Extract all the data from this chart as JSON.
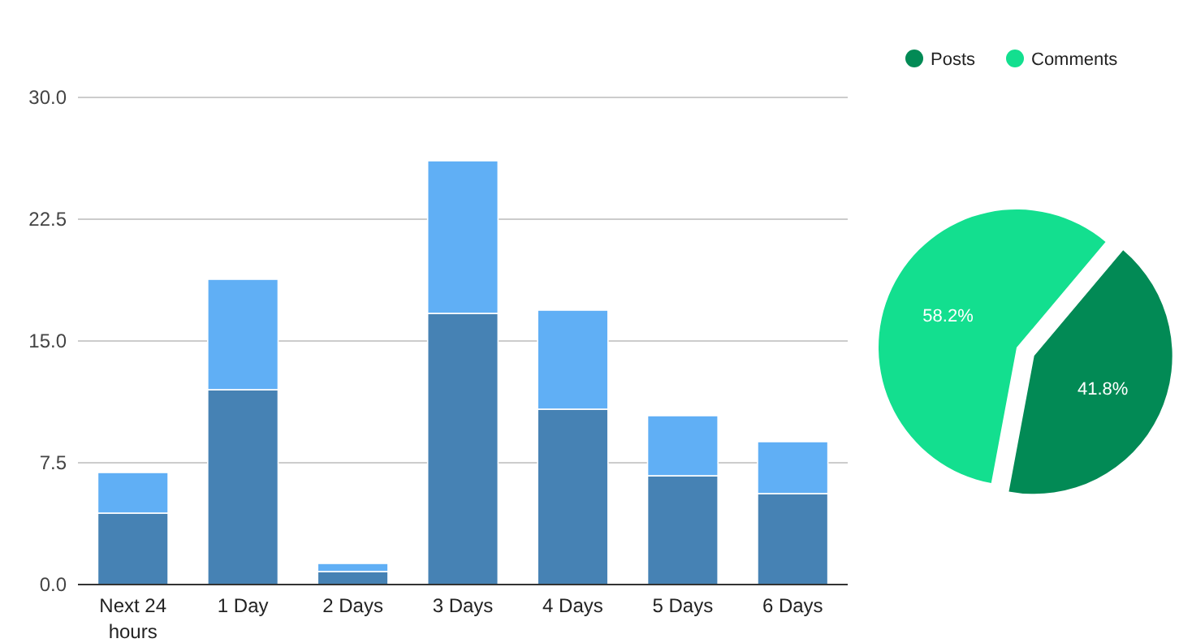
{
  "chart_data": [
    {
      "type": "bar",
      "stacked": true,
      "categories": [
        "Next 24 hours",
        "1 Day",
        "2 Days",
        "3 Days",
        "4 Days",
        "5 Days",
        "6 Days"
      ],
      "series": [
        {
          "color": "#4682b4",
          "values": [
            4.4,
            12.0,
            0.8,
            16.7,
            10.8,
            6.7,
            5.6
          ]
        },
        {
          "color": "#60aff5",
          "values": [
            2.5,
            6.8,
            0.5,
            9.4,
            6.1,
            3.7,
            3.2
          ]
        }
      ],
      "ylim": [
        0,
        30
      ],
      "yticks": [
        {
          "value": 0,
          "label": "0.0"
        },
        {
          "value": 7.5,
          "label": "7.5"
        },
        {
          "value": 15,
          "label": "15.0"
        },
        {
          "value": 22.5,
          "label": "22.5"
        },
        {
          "value": 30,
          "label": "30.0"
        }
      ],
      "grid": "y",
      "legend": false
    },
    {
      "type": "pie",
      "categories": [
        "Posts",
        "Comments"
      ],
      "values": [
        41.8,
        58.2
      ],
      "colors": [
        "#028a55",
        "#13df8f"
      ],
      "value_labels": [
        "41.8%",
        "58.2%"
      ],
      "legend": "top"
    }
  ]
}
